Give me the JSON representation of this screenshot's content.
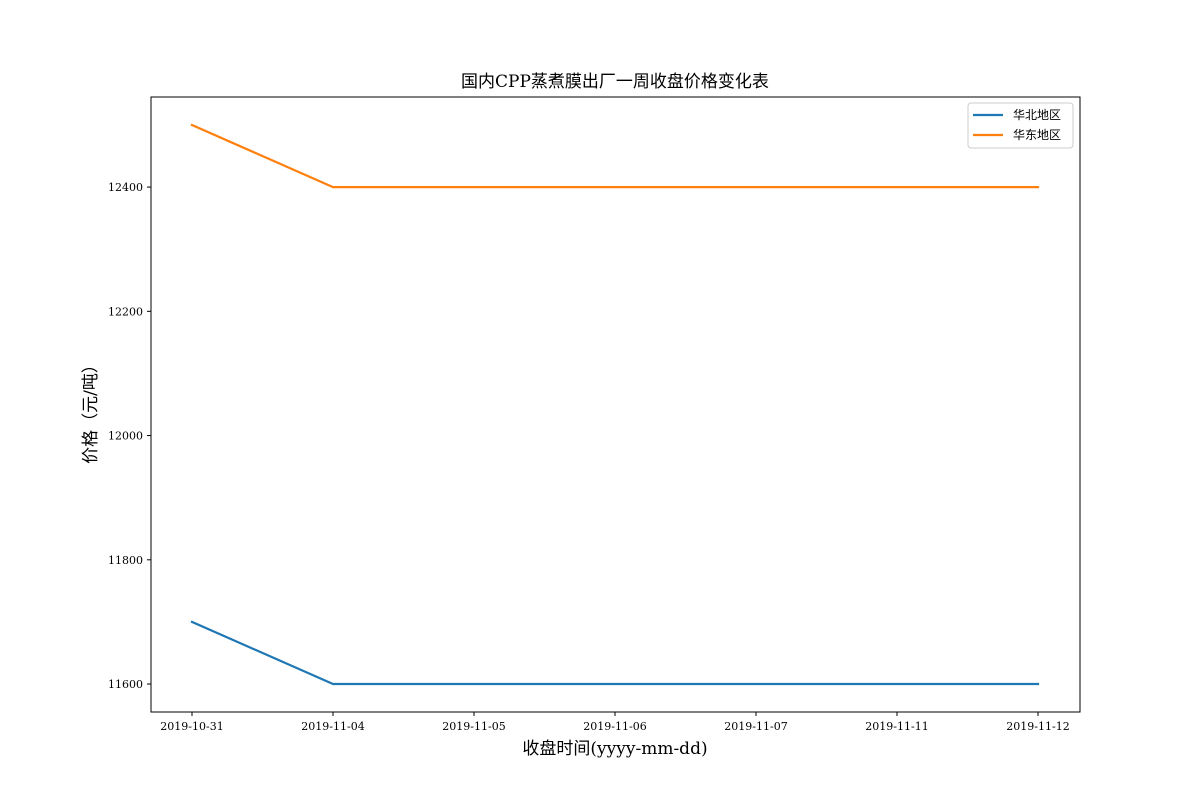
{
  "chart_data": {
    "type": "line",
    "title": "国内CPP蒸煮膜出厂一周收盘价格变化表",
    "xlabel": "收盘时间(yyyy-mm-dd)",
    "ylabel": "价格（元/吨）",
    "categories": [
      "2019-10-31",
      "2019-11-04",
      "2019-11-05",
      "2019-11-06",
      "2019-11-07",
      "2019-11-11",
      "2019-11-12"
    ],
    "yticks": [
      11600,
      11800,
      12000,
      12200,
      12400
    ],
    "ylim": [
      11555,
      12545
    ],
    "grid": false,
    "legend_position": "top-right",
    "series": [
      {
        "name": "华北地区",
        "color": "#1f77b4",
        "values": [
          11700,
          11600,
          11600,
          11600,
          11600,
          11600,
          11600
        ]
      },
      {
        "name": "华东地区",
        "color": "#ff7f0e",
        "values": [
          12500,
          12400,
          12400,
          12400,
          12400,
          12400,
          12400
        ]
      }
    ]
  }
}
